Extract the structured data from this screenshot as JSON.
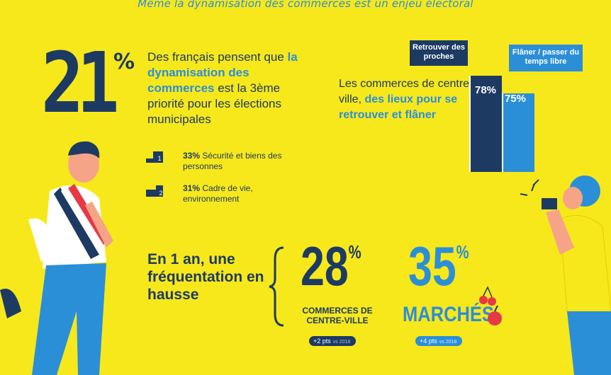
{
  "title": "Même la dynamisation des commerces est un enjeu électoral",
  "stat1": {
    "value": "21",
    "percent": "%",
    "text_before": "Des français pensent que ",
    "text_highlight": "la dynamisation des commerces",
    "text_after": " est la 3ème priorité pour les élections municipales"
  },
  "ranks": [
    {
      "number": "1",
      "pct": "33%",
      "label": "Sécurité et biens des personnes"
    },
    {
      "number": "2",
      "pct": "31%",
      "label": "Cadre de vie, environnement"
    }
  ],
  "commerces": {
    "text_before": "Les commerces de centre-ville, ",
    "text_highlight": "des lieux pour se retrouver et flâner"
  },
  "chart_data": {
    "type": "bar",
    "categories": [
      "Retrouver des proches",
      "Flâner / passer du temps libre"
    ],
    "values": [
      78,
      75
    ],
    "value_labels": [
      "78%",
      "75%"
    ],
    "colors": [
      "#1d3a63",
      "#2b8fd8"
    ]
  },
  "frequentation": {
    "heading": "En 1 an, une fréquentation en hausse",
    "items": [
      {
        "value": "28",
        "percent": "%",
        "label": "COMMERCES DE CENTRE-VILLE",
        "change": "+2 pts",
        "vs": "vs 2018",
        "color": "#1d3a63"
      },
      {
        "value": "35",
        "percent": "%",
        "label": "MARCHÉS",
        "change": "+4 pts",
        "vs": "vs 2018",
        "color": "#2b8fd8"
      }
    ]
  },
  "colors": {
    "background": "#f7e81c",
    "navy": "#1d3a63",
    "blue": "#2b8fd8"
  }
}
